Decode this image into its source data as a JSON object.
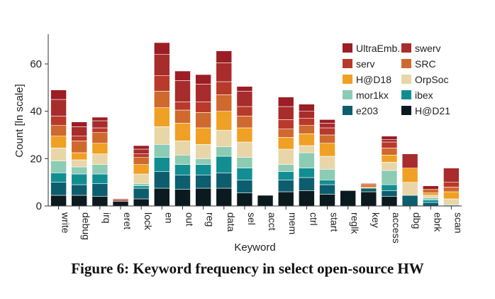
{
  "caption": "Figure 6: Keyword frequency in select open-source HW",
  "chart_data": {
    "type": "bar",
    "stacked": true,
    "xlabel": "Keyword",
    "ylabel": "Count [ln scale]",
    "ylim": [
      0,
      72
    ],
    "yticks": [
      0,
      20,
      40,
      60
    ],
    "grid": false,
    "legend_position": "top-right",
    "categories": [
      "write",
      "debug",
      "irq",
      "eret",
      "lock",
      "en",
      "out",
      "reg",
      "data",
      "sel",
      "acct",
      "mem",
      "ctrl",
      "start",
      "reglk",
      "key",
      "access",
      "dbg",
      "ebrk",
      "scan"
    ],
    "series": [
      {
        "name": "H@D21",
        "color": "#0b1a1f",
        "values": [
          4.5,
          4.5,
          4,
          2,
          3,
          7.5,
          7,
          7.5,
          7.5,
          5.5,
          4.5,
          6,
          6.5,
          5,
          6.5,
          6,
          4,
          0,
          0,
          0
        ]
      },
      {
        "name": "e203",
        "color": "#0c5e6f",
        "values": [
          5.5,
          4.5,
          5.5,
          0,
          4.5,
          7,
          6,
          5.5,
          6.5,
          5.5,
          0,
          5,
          5.5,
          4,
          0,
          1.5,
          2.5,
          4.5,
          1.5,
          0
        ]
      },
      {
        "name": "ibex",
        "color": "#128e93",
        "values": [
          4,
          4.5,
          4,
          0,
          1,
          6,
          4.5,
          4.5,
          7,
          5,
          0,
          3.5,
          4,
          2,
          0,
          0,
          2.5,
          0,
          1,
          0
        ]
      },
      {
        "name": "mor1kx",
        "color": "#8ccbb4",
        "values": [
          5,
          3,
          4,
          0,
          1,
          5.5,
          4,
          2.5,
          4,
          4.5,
          0,
          3,
          6.5,
          4.5,
          0,
          0,
          6,
          0,
          1,
          0.5
        ]
      },
      {
        "name": "OrpSoc",
        "color": "#e8d6a8",
        "values": [
          5.5,
          3,
          4.5,
          0,
          4,
          7.5,
          6,
          6,
          7,
          6.5,
          0,
          6.5,
          3,
          5.5,
          0,
          0,
          3.5,
          5.5,
          1,
          2.5
        ]
      },
      {
        "name": "H@D18",
        "color": "#f0a024",
        "values": [
          5,
          3,
          4.5,
          0,
          4,
          8,
          7.5,
          7,
          8,
          6,
          0,
          5,
          5,
          5.5,
          0,
          0.5,
          3,
          6,
          1,
          3
        ]
      },
      {
        "name": "SRC",
        "color": "#cf692d",
        "values": [
          4.5,
          5,
          4.5,
          0,
          3,
          7,
          5.5,
          6.5,
          7,
          5,
          0,
          3.5,
          3.5,
          3.5,
          0,
          1,
          3,
          0,
          1.5,
          2
        ]
      },
      {
        "name": "serv",
        "color": "#b9392a",
        "values": [
          4,
          2,
          2,
          0.5,
          1.5,
          6.5,
          3.5,
          4.5,
          5.5,
          4,
          0,
          4,
          3,
          3,
          0,
          0.5,
          2.5,
          0,
          0,
          2
        ]
      },
      {
        "name": "swerv",
        "color": "#a82c2b",
        "values": [
          7,
          4,
          3,
          0.5,
          2,
          9,
          9,
          7.5,
          8,
          6.5,
          0,
          5.5,
          3,
          2,
          0,
          0,
          1,
          6,
          0,
          6
        ]
      },
      {
        "name": "UltraEmb.",
        "color": "#9c1d24",
        "values": [
          4,
          2,
          1.5,
          0,
          1.5,
          5,
          4,
          4,
          5,
          2,
          0,
          4,
          3,
          1.5,
          0,
          0,
          1.5,
          0,
          1.5,
          0
        ]
      }
    ]
  }
}
